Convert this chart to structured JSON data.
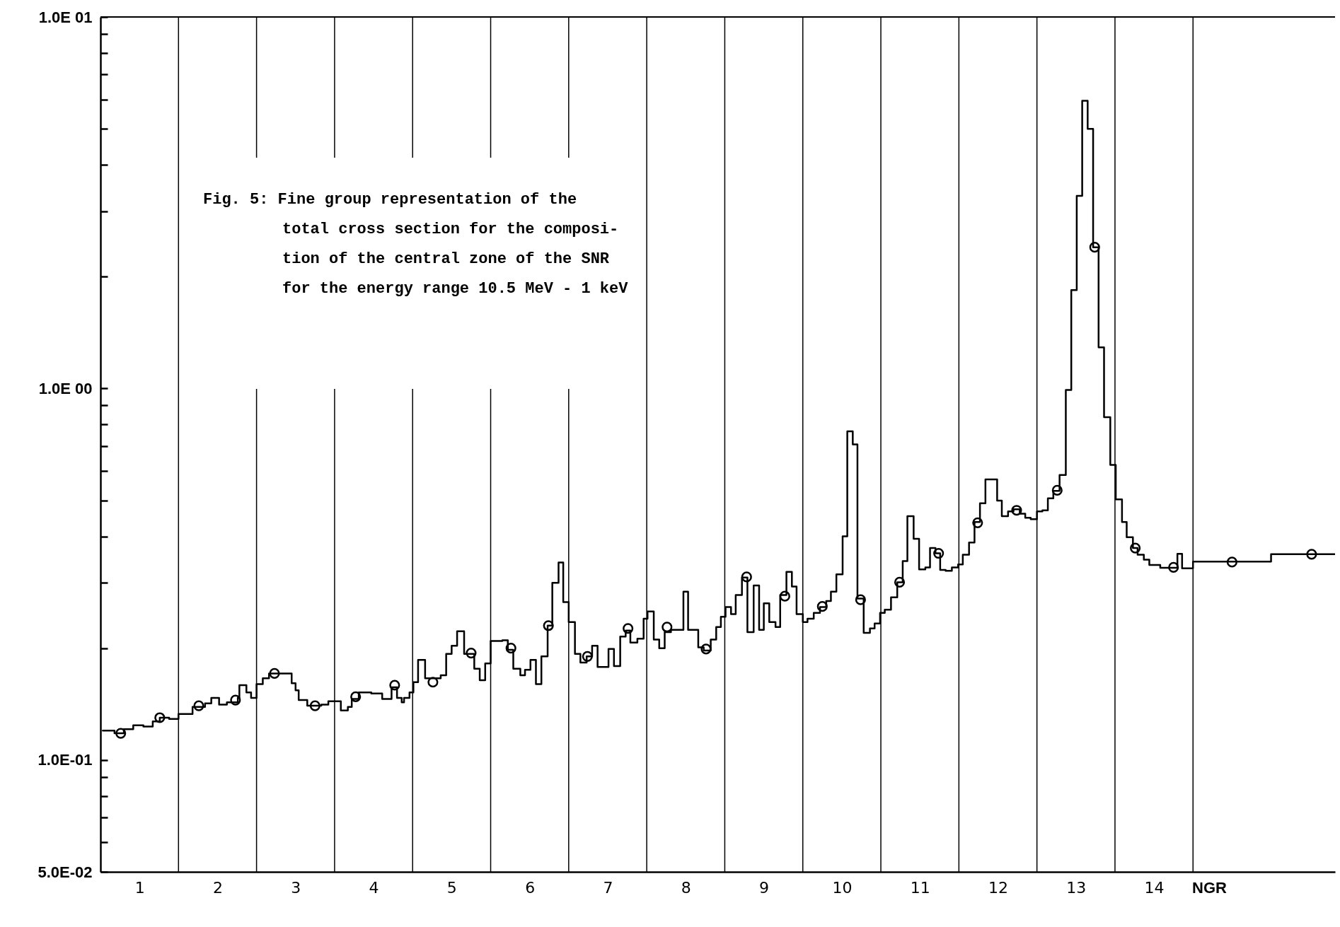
{
  "chart_data": {
    "type": "step",
    "xlabel": "NGR",
    "annotations": [
      "Fig. 5: Fine group representation of the\ntotal cross section for the composi-\ntion of the central zone of the SNR\nfor the energy range 10.5 MeV - 1 keV"
    ],
    "xlim": [
      0.5,
      16.32
    ],
    "xticks": [
      1,
      2,
      3,
      4,
      5,
      6,
      7,
      8,
      9,
      10,
      11,
      12,
      13,
      14
    ],
    "ylim": [
      0.05,
      10
    ],
    "yticks": [
      {
        "value": 0.05,
        "label": "5.0E-02"
      },
      {
        "value": 0.06,
        "label": null
      },
      {
        "value": 0.07,
        "label": null
      },
      {
        "value": 0.08,
        "label": null
      },
      {
        "value": 0.09,
        "label": null
      },
      {
        "value": 0.1,
        "label": "1.0E-01"
      },
      {
        "value": 0.2,
        "label": null
      },
      {
        "value": 0.3,
        "label": null
      },
      {
        "value": 0.4,
        "label": null
      },
      {
        "value": 0.5,
        "label": null
      },
      {
        "value": 0.6,
        "label": null
      },
      {
        "value": 0.7,
        "label": null
      },
      {
        "value": 0.8,
        "label": null
      },
      {
        "value": 0.9,
        "label": null
      },
      {
        "value": 1,
        "label": "1.0E 00"
      },
      {
        "value": 2,
        "label": null
      },
      {
        "value": 3,
        "label": null
      },
      {
        "value": 4,
        "label": null
      },
      {
        "value": 5,
        "label": null
      },
      {
        "value": 6,
        "label": null
      },
      {
        "value": 7,
        "label": null
      },
      {
        "value": 8,
        "label": null
      },
      {
        "value": 9,
        "label": null
      },
      {
        "value": 10,
        "label": "1.0E 01"
      }
    ],
    "log": true,
    "grid": false,
    "line_style": "solid",
    "ref_lines": [
      {
        "axis": "x",
        "value": 1.5
      },
      {
        "axis": "x",
        "value": 2.5
      },
      {
        "axis": "x",
        "value": 3.5
      },
      {
        "axis": "x",
        "value": 4.5
      },
      {
        "axis": "x",
        "value": 5.5
      },
      {
        "axis": "x",
        "value": 6.5
      },
      {
        "axis": "x",
        "value": 7.5
      },
      {
        "axis": "x",
        "value": 8.5
      },
      {
        "axis": "x",
        "value": 9.5
      },
      {
        "axis": "x",
        "value": 10.5
      },
      {
        "axis": "x",
        "value": 11.5
      },
      {
        "axis": "x",
        "value": 12.5
      },
      {
        "axis": "x",
        "value": 13.5
      },
      {
        "axis": "x",
        "value": 14.5
      }
    ],
    "series": [
      {
        "type": "step",
        "color": "#000000",
        "marker": "none",
        "x": [
          0.53,
          0.68,
          0.8,
          0.92,
          1.05,
          1.17,
          1.26,
          1.38,
          1.5,
          1.68,
          1.84,
          1.92,
          2.02,
          2.12,
          2.26,
          2.28,
          2.37,
          2.43,
          2.5,
          2.58,
          2.66,
          2.95,
          3.0,
          3.04,
          3.15,
          3.33,
          3.42,
          3.51,
          3.58,
          3.67,
          3.72,
          3.81,
          3.97,
          4.11,
          4.23,
          4.3,
          4.36,
          4.39,
          4.46,
          4.51,
          4.57,
          4.66,
          4.86,
          4.93,
          5.0,
          5.07,
          5.16,
          5.29,
          5.36,
          5.43,
          5.5,
          5.65,
          5.72,
          5.79,
          5.88,
          5.94,
          6.01,
          6.08,
          6.15,
          6.23,
          6.29,
          6.37,
          6.43,
          6.5,
          6.58,
          6.65,
          6.73,
          6.8,
          6.87,
          7.01,
          7.08,
          7.16,
          7.23,
          7.29,
          7.38,
          7.46,
          7.51,
          7.59,
          7.66,
          7.73,
          7.81,
          7.97,
          8.03,
          8.16,
          8.23,
          8.32,
          8.39,
          8.45,
          8.51,
          8.58,
          8.64,
          8.72,
          8.79,
          8.87,
          8.94,
          9.0,
          9.07,
          9.15,
          9.21,
          9.29,
          9.36,
          9.42,
          9.5,
          9.56,
          9.64,
          9.72,
          9.8,
          9.86,
          9.93,
          10.01,
          10.07,
          10.14,
          10.2,
          10.28,
          10.36,
          10.42,
          10.49,
          10.55,
          10.63,
          10.71,
          10.78,
          10.84,
          10.92,
          10.99,
          11.07,
          11.13,
          11.2,
          11.26,
          11.33,
          11.41,
          11.49,
          11.55,
          11.63,
          11.7,
          11.77,
          11.84,
          11.99,
          12.05,
          12.13,
          12.2,
          12.28,
          12.35,
          12.42,
          12.5,
          12.57,
          12.64,
          12.71,
          12.79,
          12.87,
          12.94,
          13.01,
          13.08,
          13.15,
          13.22,
          13.29,
          13.36,
          13.44,
          13.51,
          13.59,
          13.65,
          13.73,
          13.79,
          13.87,
          13.94,
          14.08,
          14.3,
          14.36,
          14.5,
          15.5,
          16.32
        ],
        "values": [
          0.12,
          0.118,
          0.121,
          0.124,
          0.123,
          0.127,
          0.13,
          0.129,
          0.133,
          0.139,
          0.142,
          0.147,
          0.141,
          0.143,
          0.147,
          0.159,
          0.152,
          0.147,
          0.16,
          0.166,
          0.171,
          0.161,
          0.154,
          0.145,
          0.14,
          0.141,
          0.144,
          0.144,
          0.136,
          0.139,
          0.146,
          0.152,
          0.151,
          0.146,
          0.157,
          0.147,
          0.143,
          0.147,
          0.152,
          0.162,
          0.186,
          0.166,
          0.169,
          0.193,
          0.203,
          0.222,
          0.193,
          0.176,
          0.164,
          0.182,
          0.209,
          0.21,
          0.198,
          0.176,
          0.169,
          0.175,
          0.186,
          0.16,
          0.19,
          0.23,
          0.3,
          0.34,
          0.266,
          0.235,
          0.193,
          0.183,
          0.19,
          0.203,
          0.178,
          0.199,
          0.179,
          0.215,
          0.223,
          0.207,
          0.212,
          0.24,
          0.251,
          0.211,
          0.2,
          0.221,
          0.224,
          0.284,
          0.224,
          0.201,
          0.197,
          0.211,
          0.228,
          0.243,
          0.258,
          0.247,
          0.278,
          0.31,
          0.221,
          0.295,
          0.224,
          0.264,
          0.235,
          0.228,
          0.278,
          0.321,
          0.293,
          0.247,
          0.235,
          0.24,
          0.249,
          0.258,
          0.268,
          0.284,
          0.316,
          0.4,
          0.767,
          0.707,
          0.272,
          0.22,
          0.226,
          0.233,
          0.249,
          0.254,
          0.274,
          0.301,
          0.343,
          0.453,
          0.394,
          0.326,
          0.33,
          0.372,
          0.36,
          0.325,
          0.323,
          0.33,
          0.336,
          0.357,
          0.385,
          0.437,
          0.491,
          0.569,
          0.499,
          0.453,
          0.467,
          0.473,
          0.46,
          0.449,
          0.445,
          0.467,
          0.47,
          0.506,
          0.53,
          0.585,
          0.991,
          1.84,
          3.3,
          5.95,
          5.0,
          2.4,
          1.29,
          0.837,
          0.623,
          0.503,
          0.437,
          0.398,
          0.372,
          0.357,
          0.346,
          0.335,
          0.329,
          0.359,
          0.328,
          0.342,
          0.358,
          0.358
        ]
      },
      {
        "type": "scatter",
        "color": "#000000",
        "marker": "circle",
        "x": [
          0.76,
          1.26,
          1.76,
          2.23,
          2.73,
          3.25,
          3.77,
          4.27,
          4.76,
          5.25,
          5.76,
          6.24,
          6.74,
          7.26,
          7.76,
          8.26,
          8.78,
          9.27,
          9.75,
          10.24,
          10.74,
          11.24,
          11.74,
          12.24,
          12.76,
          13.24,
          13.76,
          14.25,
          15.0,
          16.02
        ],
        "values": [
          0.118,
          0.13,
          0.14,
          0.145,
          0.171,
          0.14,
          0.148,
          0.159,
          0.162,
          0.194,
          0.2,
          0.23,
          0.19,
          0.226,
          0.228,
          0.199,
          0.311,
          0.276,
          0.259,
          0.27,
          0.301,
          0.36,
          0.435,
          0.47,
          0.532,
          2.4,
          0.372,
          0.33,
          0.341,
          0.358
        ]
      }
    ]
  }
}
